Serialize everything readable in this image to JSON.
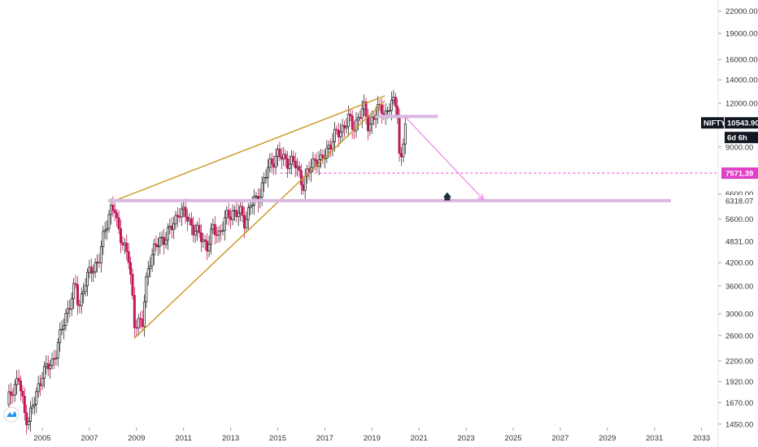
{
  "chart_data": {
    "type": "candlestick",
    "symbol": "NIFTY",
    "scale": "log",
    "x_axis": {
      "type": "time",
      "range_years": [
        2003.5,
        2034.5
      ],
      "tick_labels": [
        "2005",
        "2007",
        "2009",
        "2011",
        "2013",
        "2015",
        "2017",
        "2019",
        "2021",
        "2023",
        "2025",
        "2027",
        "2029",
        "2031",
        "2033"
      ]
    },
    "y_axis": {
      "range": [
        1450,
        24000
      ],
      "tick_labels": [
        "22000.00",
        "19000.00",
        "16000.00",
        "14000.00",
        "12000.00",
        "9000.00",
        "6600.00",
        "5600.00",
        "4200.00",
        "3600.00",
        "3000.00",
        "2600.00",
        "2200.00",
        "1920.00",
        "1670.00",
        "1450.00"
      ]
    },
    "price_badges": [
      {
        "label": "NIFTY",
        "value": "10543.90",
        "style": "dark"
      },
      {
        "label": "",
        "value": "6d 6h",
        "style": "dark-countdown"
      },
      {
        "label": "",
        "value": "7571.39",
        "style": "magenta"
      },
      {
        "label": "",
        "value": "6318.07",
        "style": "light"
      },
      {
        "label": "",
        "value": "4831.00",
        "style": "light"
      }
    ],
    "ohlc_monthly": [],
    "close_path_points": [
      [
        2003.5,
        1650
      ],
      [
        2003.75,
        1850
      ],
      [
        2004.0,
        1950
      ],
      [
        2004.25,
        1550
      ],
      [
        2004.4,
        1500
      ],
      [
        2004.7,
        1700
      ],
      [
        2005.0,
        2050
      ],
      [
        2005.4,
        2150
      ],
      [
        2005.8,
        2650
      ],
      [
        2006.2,
        3300
      ],
      [
        2006.4,
        3600
      ],
      [
        2006.55,
        3100
      ],
      [
        2006.8,
        3700
      ],
      [
        2007.1,
        4000
      ],
      [
        2007.4,
        4300
      ],
      [
        2007.7,
        5300
      ],
      [
        2007.9,
        6050
      ],
      [
        2008.05,
        6100
      ],
      [
        2008.2,
        5200
      ],
      [
        2008.45,
        4800
      ],
      [
        2008.65,
        4400
      ],
      [
        2008.8,
        3500
      ],
      [
        2008.9,
        2800
      ],
      [
        2009.05,
        2900
      ],
      [
        2009.25,
        2800
      ],
      [
        2009.4,
        3600
      ],
      [
        2009.55,
        4300
      ],
      [
        2009.75,
        4600
      ],
      [
        2010.0,
        4800
      ],
      [
        2010.3,
        5100
      ],
      [
        2010.6,
        5400
      ],
      [
        2010.8,
        6000
      ],
      [
        2011.0,
        5800
      ],
      [
        2011.25,
        5500
      ],
      [
        2011.5,
        5200
      ],
      [
        2011.8,
        4900
      ],
      [
        2012.0,
        4700
      ],
      [
        2012.25,
        5200
      ],
      [
        2012.5,
        5100
      ],
      [
        2012.8,
        5600
      ],
      [
        2013.1,
        5900
      ],
      [
        2013.4,
        5800
      ],
      [
        2013.6,
        5500
      ],
      [
        2013.85,
        6200
      ],
      [
        2014.1,
        6300
      ],
      [
        2014.4,
        7200
      ],
      [
        2014.7,
        8100
      ],
      [
        2015.0,
        8600
      ],
      [
        2015.2,
        8300
      ],
      [
        2015.55,
        8200
      ],
      [
        2015.8,
        7900
      ],
      [
        2016.1,
        7000
      ],
      [
        2016.25,
        7500
      ],
      [
        2016.6,
        8400
      ],
      [
        2016.85,
        8100
      ],
      [
        2017.1,
        8900
      ],
      [
        2017.4,
        9600
      ],
      [
        2017.7,
        10100
      ],
      [
        2018.0,
        10800
      ],
      [
        2018.2,
        10200
      ],
      [
        2018.5,
        11200
      ],
      [
        2018.65,
        11600
      ],
      [
        2018.85,
        10400
      ],
      [
        2019.1,
        11000
      ],
      [
        2019.4,
        11800
      ],
      [
        2019.6,
        11100
      ],
      [
        2019.85,
        12000
      ],
      [
        2020.0,
        12100
      ],
      [
        2020.1,
        11400
      ],
      [
        2020.15,
        8600
      ],
      [
        2020.25,
        8200
      ],
      [
        2020.35,
        9500
      ],
      [
        2020.42,
        10500
      ]
    ],
    "annotations": [
      {
        "type": "trendline",
        "color": "#c8961e",
        "from": [
          2007.9,
          6250
        ],
        "to": [
          2019.55,
          12600
        ],
        "label": ""
      },
      {
        "type": "trendline",
        "color": "#c8961e",
        "from": [
          2008.9,
          2550
        ],
        "to": [
          2019.55,
          12200
        ],
        "label": ""
      },
      {
        "type": "horizontal_zone",
        "color": "#d9b8e0",
        "price": 6318.07,
        "from_year": 2007.8,
        "to_year": 2031.7
      },
      {
        "type": "horizontal_zone",
        "color": "#d9b8e0",
        "price": 11000,
        "from_year": 2019.2,
        "to_year": 2021.8
      },
      {
        "type": "dashed_level",
        "color": "#e040c8",
        "price": 7571.39,
        "from_year": 2015.1,
        "to_year": 2034.5
      },
      {
        "type": "arrow",
        "color": "#f08ce8",
        "from": [
          2020.45,
          10900
        ],
        "to": [
          2023.75,
          6350
        ]
      },
      {
        "type": "icon",
        "name": "home-icon",
        "at": [
          2022.2,
          6500
        ]
      }
    ]
  }
}
